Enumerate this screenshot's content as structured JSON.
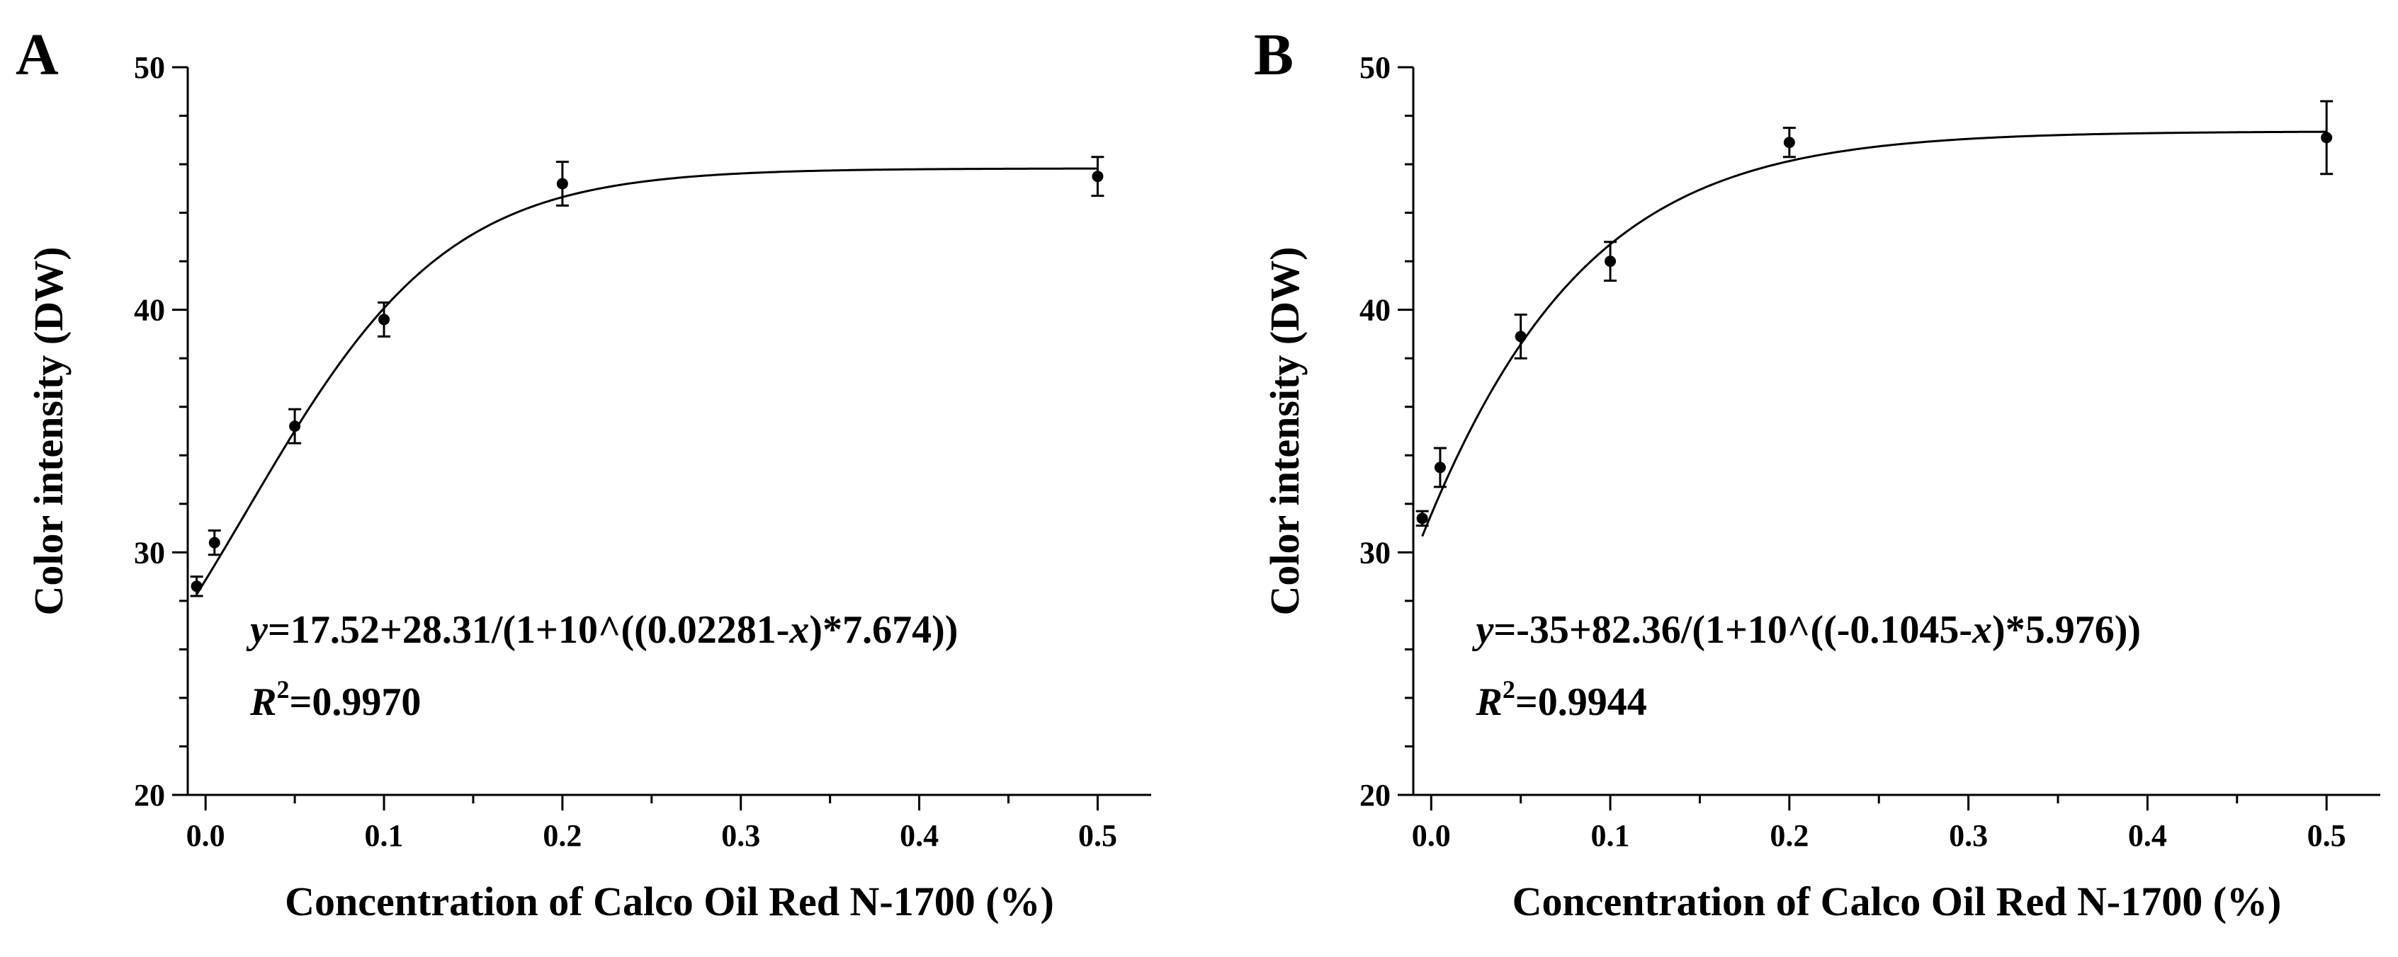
{
  "chart_data": [
    {
      "panel": "A",
      "type": "scatter",
      "fit_type": "sigmoid",
      "xlabel": "Concentration of Calco Oil Red N-1700 (%)",
      "ylabel": "Color intensity (DW)",
      "xlim": [
        -0.01,
        0.53
      ],
      "ylim": [
        20,
        50
      ],
      "xticks": [
        0.0,
        0.1,
        0.2,
        0.3,
        0.4,
        0.5
      ],
      "xtick_labels": [
        "0.0",
        "0.1",
        "0.2",
        "0.3",
        "0.4",
        "0.5"
      ],
      "yticks": [
        20,
        30,
        40,
        50
      ],
      "ytick_labels": [
        "20",
        "30",
        "40",
        "50"
      ],
      "x": [
        -0.005,
        0.005,
        0.05,
        0.1,
        0.2,
        0.5
      ],
      "y": [
        28.6,
        30.4,
        35.2,
        39.6,
        45.2,
        45.5
      ],
      "err": [
        0.4,
        0.5,
        0.7,
        0.7,
        0.9,
        0.8
      ],
      "fit_params": {
        "base": 17.52,
        "amp": 28.31,
        "x0": 0.02281,
        "k": 7.674
      },
      "equation": {
        "y": "y",
        "body1": "=17.52+28.31/(1+10^((0.02281-",
        "x": "x",
        "body2": ")*7.674))",
        "r": "R",
        "r_exp": "2",
        "r_value": "=0.9970"
      }
    },
    {
      "panel": "B",
      "type": "scatter",
      "fit_type": "sigmoid",
      "xlabel": "Concentration of Calco Oil Red N-1700 (%)",
      "ylabel": "Color intensity (DW)",
      "xlim": [
        -0.01,
        0.53
      ],
      "ylim": [
        20,
        50
      ],
      "xticks": [
        0.0,
        0.1,
        0.2,
        0.3,
        0.4,
        0.5
      ],
      "xtick_labels": [
        "0.0",
        "0.1",
        "0.2",
        "0.3",
        "0.4",
        "0.5"
      ],
      "yticks": [
        20,
        30,
        40,
        50
      ],
      "ytick_labels": [
        "20",
        "30",
        "40",
        "50"
      ],
      "x": [
        -0.005,
        0.005,
        0.05,
        0.1,
        0.2,
        0.5
      ],
      "y": [
        31.4,
        33.5,
        38.9,
        42.0,
        46.9,
        47.1
      ],
      "err": [
        0.3,
        0.8,
        0.9,
        0.8,
        0.6,
        1.5
      ],
      "fit_params": {
        "base": -35,
        "amp": 82.36,
        "x0": -0.1045,
        "k": 5.976
      },
      "equation": {
        "y": "y",
        "body1": "=-35+82.36/(1+10^((-0.1045-",
        "x": "x",
        "body2": ")*5.976))",
        "r": "R",
        "r_exp": "2",
        "r_value": "=0.9944"
      }
    }
  ]
}
